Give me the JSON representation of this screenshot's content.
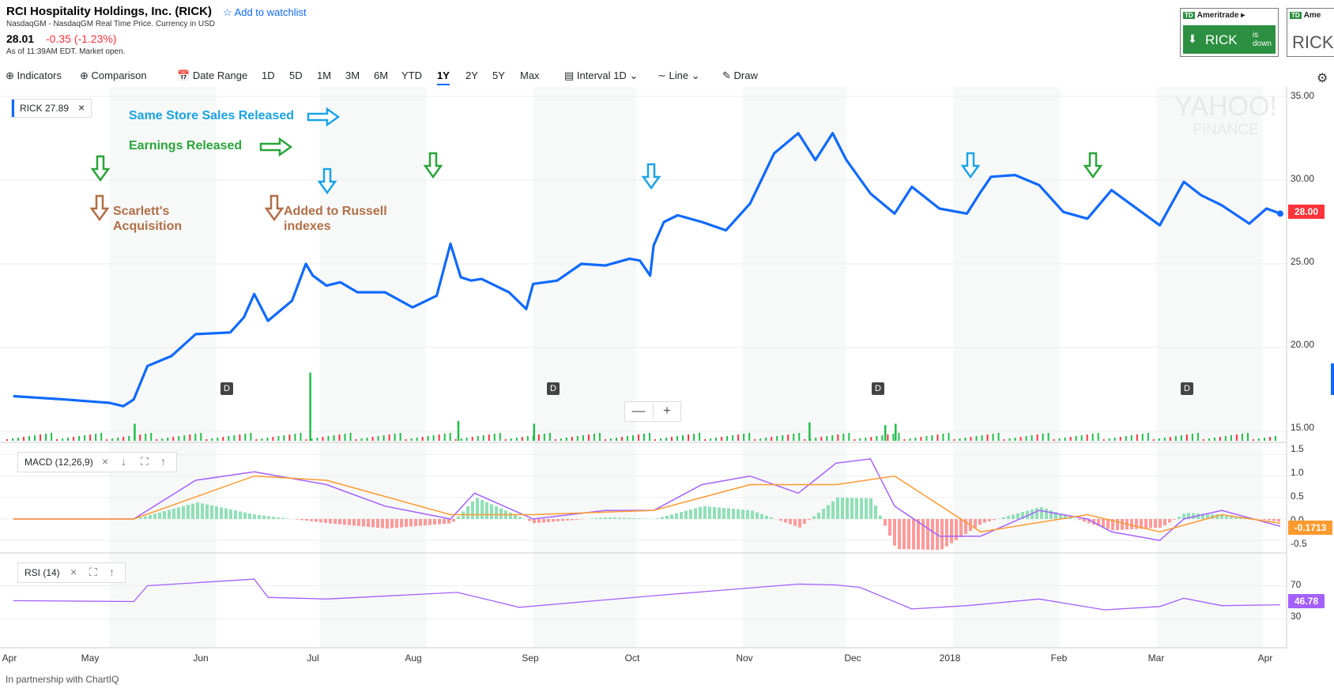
{
  "header": {
    "title": "RCI Hospitality Holdings, Inc. (RICK)",
    "watchlist_label": "Add to watchlist",
    "exchange": "NasdaqGM - NasdaqGM Real Time Price. Currency in USD",
    "price": "28.01",
    "change": "-0.35 (-1.23%)",
    "as_of": "As of 11:39AM EDT. Market open."
  },
  "ads": [
    {
      "brand": "Ameritrade",
      "ticker": "RICK",
      "status": "is down",
      "logo": "TD"
    },
    {
      "brand": "Ame",
      "ticker": "RICK",
      "logo": "TD"
    }
  ],
  "toolbar": {
    "indicators": "Indicators",
    "comparison": "Comparison",
    "date_range": "Date Range",
    "ranges": [
      "1D",
      "5D",
      "1M",
      "3M",
      "6M",
      "YTD",
      "1Y",
      "2Y",
      "5Y",
      "Max"
    ],
    "active_range": "1Y",
    "interval": "Interval",
    "interval_value": "1D",
    "line": "Line",
    "draw": "Draw"
  },
  "legend": {
    "label": "RICK 27.89"
  },
  "annotations": {
    "same_store": "Same Store Sales Released",
    "earnings": "Earnings Released",
    "scarlett_1": "Scarlett's",
    "scarlett_2": "Acquisition",
    "russell_1": "Added to Russell",
    "russell_2": "indexes"
  },
  "watermark": {
    "line1": "YAHOO!",
    "line2": "FINANCE"
  },
  "dividend_marker": "D",
  "price_tag": "28.00",
  "macd": {
    "label": "MACD (12,26,9)",
    "value_tag": "-0.1713",
    "ticks": [
      "1.5",
      "1.0",
      "0.5",
      "0.0",
      "-0.5"
    ]
  },
  "rsi": {
    "label": "RSI (14)",
    "value_tag": "46.78",
    "ticks": [
      "70",
      "30"
    ]
  },
  "footer": "In partnership with ChartIQ",
  "colors": {
    "price_line": "#0f69ff",
    "macd_line": "#a460ff",
    "signal_line": "#ff9a2f",
    "hist_pos": "#8fe0b6",
    "hist_neg": "#ff9a9a",
    "rsi_line": "#a460ff",
    "vol_up": "#1fbf4a",
    "vol_down": "#ff333a",
    "same_store_arrow": "#1aa3e6",
    "earnings_arrow": "#2aa43a",
    "acquisition_arrow": "#b06f47"
  },
  "chart_data": [
    {
      "type": "line",
      "title": "RICK",
      "x_labels": [
        "Apr",
        "May",
        "Jun",
        "Jul",
        "Aug",
        "Sep",
        "Oct",
        "Nov",
        "Dec",
        "2018",
        "Feb",
        "Mar",
        "Apr"
      ],
      "y_ticks": [
        "35.00",
        "30.00",
        "25.00",
        "20.00",
        "15.00"
      ],
      "ylim": [
        15,
        35
      ],
      "grid": true,
      "series": [
        {
          "name": "RICK",
          "x": [
            "2017-04-03",
            "2017-04-18",
            "2017-05-01",
            "2017-05-05",
            "2017-05-08",
            "2017-05-12",
            "2017-05-19",
            "2017-05-26",
            "2017-06-05",
            "2017-06-09",
            "2017-06-12",
            "2017-06-16",
            "2017-06-23",
            "2017-06-27",
            "2017-06-29",
            "2017-07-03",
            "2017-07-07",
            "2017-07-12",
            "2017-07-20",
            "2017-07-28",
            "2017-08-04",
            "2017-08-08",
            "2017-08-11",
            "2017-08-14",
            "2017-08-17",
            "2017-08-25",
            "2017-08-30",
            "2017-09-01",
            "2017-09-08",
            "2017-09-15",
            "2017-09-22",
            "2017-09-29",
            "2017-10-02",
            "2017-10-05",
            "2017-10-06",
            "2017-10-09",
            "2017-10-13",
            "2017-10-20",
            "2017-10-27",
            "2017-11-03",
            "2017-11-10",
            "2017-11-17",
            "2017-11-22",
            "2017-11-27",
            "2017-12-01",
            "2017-12-08",
            "2017-12-15",
            "2017-12-20",
            "2017-12-28",
            "2018-01-05",
            "2018-01-09",
            "2018-01-12",
            "2018-01-19",
            "2018-01-26",
            "2018-02-02",
            "2018-02-09",
            "2018-02-16",
            "2018-02-22",
            "2018-03-02",
            "2018-03-09",
            "2018-03-14",
            "2018-03-20",
            "2018-03-28",
            "2018-04-02",
            "2018-04-06"
          ],
          "y": [
            17.1,
            16.9,
            16.7,
            16.5,
            16.9,
            18.9,
            19.5,
            20.8,
            20.9,
            21.8,
            23.2,
            21.6,
            22.8,
            25.0,
            24.3,
            23.7,
            23.9,
            23.3,
            23.3,
            22.4,
            23.1,
            26.2,
            24.2,
            24.0,
            24.1,
            23.3,
            22.3,
            23.8,
            24.0,
            25.0,
            24.9,
            25.3,
            25.2,
            24.3,
            26.1,
            27.5,
            27.9,
            27.5,
            27.0,
            28.6,
            31.6,
            32.8,
            31.2,
            32.8,
            31.2,
            29.2,
            28.0,
            29.6,
            28.3,
            28.0,
            29.3,
            30.2,
            30.3,
            29.7,
            28.1,
            27.7,
            29.4,
            28.5,
            27.3,
            29.9,
            29.1,
            28.5,
            27.4,
            28.3,
            28.0
          ]
        }
      ]
    },
    {
      "type": "bar",
      "title": "Volume",
      "x": [
        "2017-05-08",
        "2017-06-28",
        "2017-08-10",
        "2017-09-01",
        "2017-11-20",
        "2017-12-12",
        "2017-12-15"
      ],
      "values": [
        1.2,
        4.8,
        1.4,
        1.2,
        1.3,
        1.1,
        1.2
      ]
    },
    {
      "type": "line",
      "title": "MACD (12,26,9)",
      "ylim": [
        -0.7,
        1.6
      ],
      "series": [
        {
          "name": "MACD",
          "x": [
            "2017-04-03",
            "2017-05-08",
            "2017-05-26",
            "2017-06-12",
            "2017-07-03",
            "2017-07-20",
            "2017-08-08",
            "2017-08-15",
            "2017-09-01",
            "2017-09-22",
            "2017-10-06",
            "2017-10-20",
            "2017-11-03",
            "2017-11-17",
            "2017-11-28",
            "2017-12-08",
            "2017-12-15",
            "2017-12-28",
            "2018-01-09",
            "2018-01-26",
            "2018-02-09",
            "2018-02-16",
            "2018-03-02",
            "2018-03-09",
            "2018-03-20",
            "2018-04-06"
          ],
          "y": [
            0.0,
            0.0,
            0.9,
            1.1,
            0.8,
            0.3,
            0.0,
            0.6,
            0.0,
            0.2,
            0.2,
            0.8,
            1.0,
            0.6,
            1.3,
            1.4,
            0.3,
            -0.4,
            -0.4,
            0.2,
            0.0,
            -0.3,
            -0.5,
            0.0,
            0.2,
            -0.17
          ]
        },
        {
          "name": "Signal",
          "x": [
            "2017-04-03",
            "2017-05-08",
            "2017-06-12",
            "2017-07-03",
            "2017-08-08",
            "2017-09-01",
            "2017-10-06",
            "2017-11-03",
            "2017-11-28",
            "2017-12-15",
            "2018-01-09",
            "2018-02-09",
            "2018-03-02",
            "2018-03-20",
            "2018-04-06"
          ],
          "y": [
            0.0,
            0.0,
            1.0,
            0.9,
            0.1,
            0.1,
            0.2,
            0.8,
            0.8,
            1.0,
            -0.3,
            0.1,
            -0.3,
            0.1,
            -0.1
          ]
        }
      ]
    },
    {
      "type": "line",
      "title": "RSI (14)",
      "ylim": [
        0,
        100
      ],
      "series": [
        {
          "name": "RSI",
          "x": [
            "2017-04-03",
            "2017-05-08",
            "2017-05-12",
            "2017-06-12",
            "2017-06-16",
            "2017-07-03",
            "2017-08-10",
            "2017-08-28",
            "2017-10-06",
            "2017-11-17",
            "2017-11-28",
            "2017-12-05",
            "2017-12-20",
            "2018-01-05",
            "2018-01-26",
            "2018-02-14",
            "2018-03-02",
            "2018-03-09",
            "2018-03-20",
            "2018-04-06"
          ],
          "y": [
            52,
            51,
            70,
            78,
            56,
            54,
            62,
            44,
            58,
            72,
            71,
            68,
            42,
            46,
            54,
            41,
            45,
            55,
            46,
            47
          ]
        }
      ]
    }
  ]
}
